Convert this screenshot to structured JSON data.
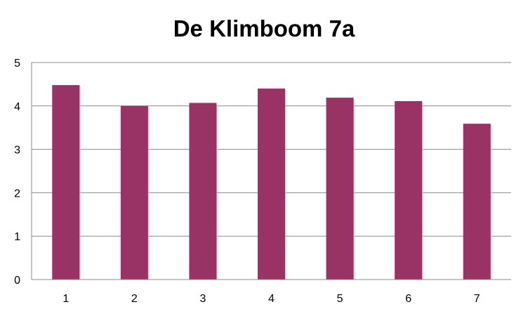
{
  "chart_data": {
    "type": "bar",
    "title": "De Klimboom 7a",
    "categories": [
      "1",
      "2",
      "3",
      "4",
      "5",
      "6",
      "7"
    ],
    "values": [
      4.48,
      4.0,
      4.07,
      4.4,
      4.19,
      4.11,
      3.59
    ],
    "ylim": [
      0,
      5
    ],
    "yticks": [
      "0",
      "1",
      "2",
      "3",
      "4",
      "5"
    ],
    "xlabel": "",
    "ylabel": "",
    "grid": true,
    "bar_color": "#993366"
  }
}
